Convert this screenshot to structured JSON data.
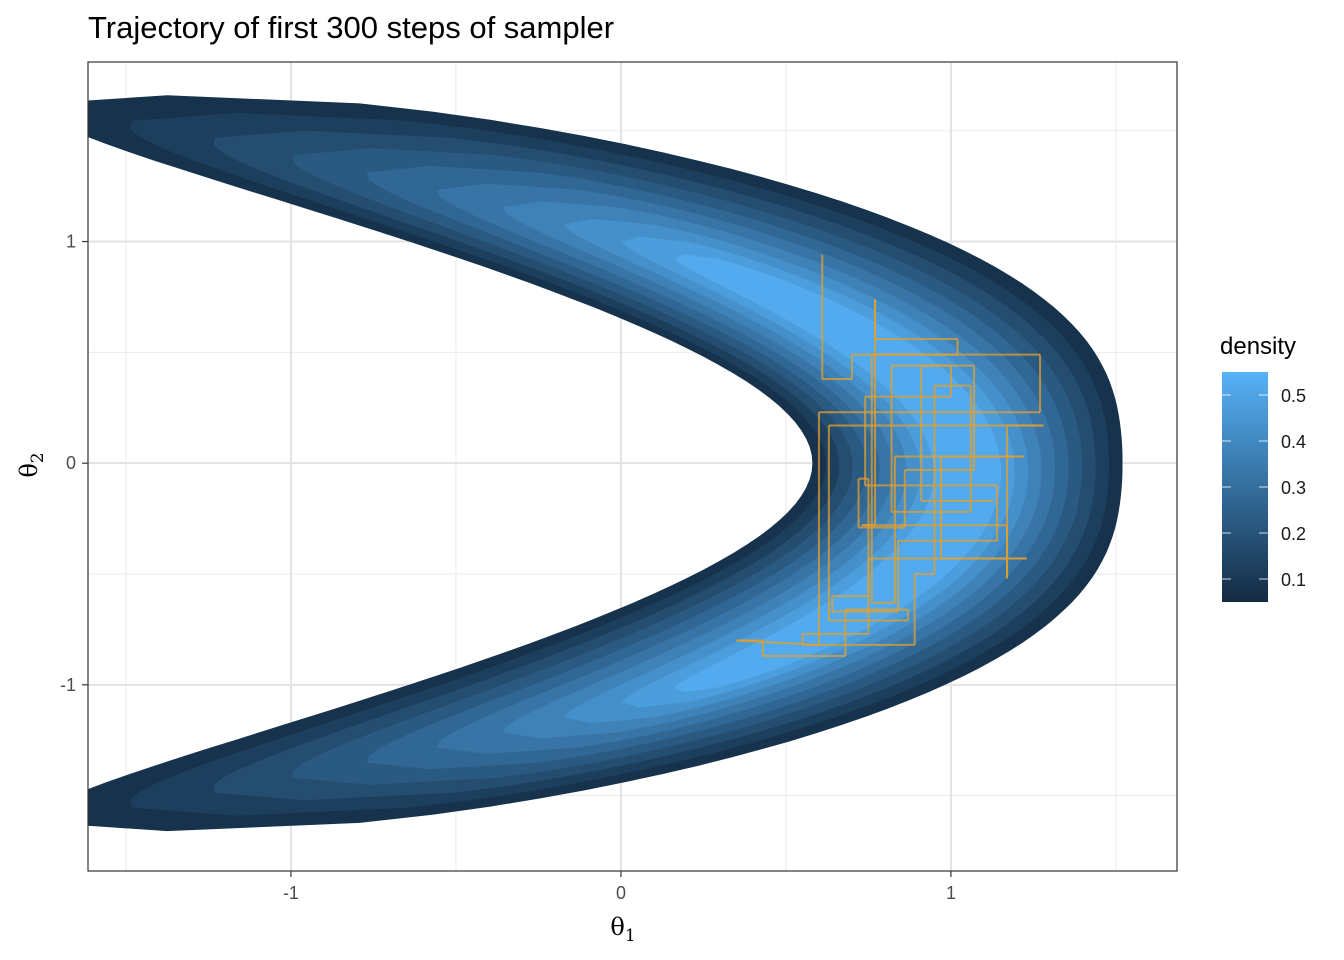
{
  "chart_data": {
    "type": "contour",
    "title": "Trajectory of first 300 steps of sampler",
    "xlabel": "θ",
    "xlabel_sub": "1",
    "ylabel": "θ",
    "ylabel_sub": "2",
    "xlim": [
      -1.615,
      1.685
    ],
    "ylim": [
      -1.84,
      1.81
    ],
    "x_ticks": [
      -1,
      0,
      1
    ],
    "x_tick_labels": [
      "-1",
      "0",
      "1"
    ],
    "y_ticks": [
      -1,
      0,
      1
    ],
    "y_tick_labels": [
      "-1",
      "0",
      "1"
    ],
    "x_minor": [
      -1.5,
      -0.5,
      0.5,
      1.5
    ],
    "y_minor": [
      -1.5,
      -0.5,
      0.5,
      1.5
    ],
    "grid": true,
    "density_surface": {
      "description_model": "banana: center theta1 = 1.05 - 0.88*theta2^2",
      "levels": [
        0.05,
        0.1,
        0.15,
        0.2,
        0.25,
        0.3,
        0.35,
        0.4,
        0.45,
        0.5
      ],
      "low_color": "#132B43",
      "high_color": "#56B1F7"
    },
    "legend": {
      "title": "density",
      "position": "right",
      "range": [
        0.05,
        0.55
      ],
      "ticks": [
        0.1,
        0.2,
        0.3,
        0.4,
        0.5
      ],
      "tick_labels": [
        "0.1",
        "0.2",
        "0.3",
        "0.4",
        "0.5"
      ]
    },
    "trajectory": {
      "color": "#E69F2A",
      "points": [
        [
          0.61,
          0.94
        ],
        [
          0.61,
          0.38
        ],
        [
          0.7,
          0.38
        ],
        [
          0.7,
          0.49
        ],
        [
          1.27,
          0.49
        ],
        [
          1.27,
          0.23
        ],
        [
          0.6,
          0.23
        ],
        [
          0.6,
          -0.82
        ],
        [
          0.35,
          -0.8
        ],
        [
          0.43,
          -0.8
        ],
        [
          0.43,
          -0.87
        ],
        [
          0.68,
          -0.87
        ],
        [
          0.68,
          -0.66
        ],
        [
          0.87,
          -0.66
        ],
        [
          0.87,
          -0.71
        ],
        [
          0.63,
          -0.71
        ],
        [
          0.63,
          0.17
        ],
        [
          1.28,
          0.17
        ],
        [
          1.17,
          0.17
        ],
        [
          1.17,
          -0.52
        ],
        [
          1.17,
          -0.28
        ],
        [
          0.73,
          -0.28
        ],
        [
          0.77,
          -0.28
        ],
        [
          0.77,
          0.74
        ],
        [
          0.77,
          0.56
        ],
        [
          1.02,
          0.56
        ],
        [
          1.02,
          0.49
        ],
        [
          0.76,
          0.49
        ],
        [
          0.76,
          -0.63
        ],
        [
          0.83,
          -0.63
        ],
        [
          0.83,
          0.03
        ],
        [
          1.22,
          0.03
        ],
        [
          0.97,
          0.03
        ],
        [
          0.97,
          -0.43
        ],
        [
          1.23,
          -0.43
        ],
        [
          0.75,
          -0.43
        ],
        [
          0.75,
          -0.6
        ],
        [
          0.64,
          -0.6
        ],
        [
          0.64,
          -0.67
        ],
        [
          0.84,
          -0.67
        ],
        [
          0.84,
          -0.35
        ],
        [
          1.14,
          -0.35
        ],
        [
          1.14,
          -0.1
        ],
        [
          0.74,
          -0.1
        ],
        [
          0.74,
          0.3
        ],
        [
          1.0,
          0.3
        ],
        [
          1.0,
          0.44
        ],
        [
          0.82,
          0.44
        ],
        [
          0.82,
          -0.22
        ],
        [
          1.06,
          -0.22
        ],
        [
          1.06,
          0.35
        ],
        [
          0.95,
          0.35
        ],
        [
          0.95,
          -0.5
        ],
        [
          0.89,
          -0.5
        ],
        [
          0.89,
          -0.82
        ],
        [
          0.55,
          -0.82
        ],
        [
          0.55,
          -0.77
        ],
        [
          0.75,
          -0.77
        ],
        [
          0.75,
          -0.07
        ],
        [
          0.72,
          -0.07
        ],
        [
          0.72,
          -0.29
        ],
        [
          0.86,
          -0.29
        ],
        [
          0.86,
          -0.03
        ],
        [
          1.07,
          -0.03
        ],
        [
          1.07,
          0.44
        ],
        [
          0.91,
          0.44
        ],
        [
          0.91,
          -0.17
        ],
        [
          1.13,
          -0.17
        ]
      ]
    }
  }
}
